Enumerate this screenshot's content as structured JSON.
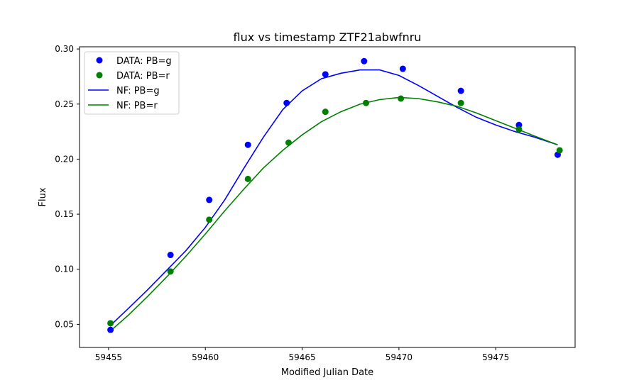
{
  "chart_data": {
    "type": "scatter",
    "title": "flux vs timestamp ZTF21abwfnru",
    "xlabel": "Modified Julian Date",
    "ylabel": "Flux",
    "xlim": [
      59453.5,
      59479.1
    ],
    "ylim": [
      0.029,
      0.302
    ],
    "xticks": [
      59455,
      59460,
      59465,
      59470,
      59475
    ],
    "yticks": [
      0.05,
      0.1,
      0.15,
      0.2,
      0.25,
      0.3
    ],
    "xtick_labels": [
      "59455",
      "59460",
      "59465",
      "59470",
      "59475"
    ],
    "ytick_labels": [
      "0.05",
      "0.10",
      "0.15",
      "0.20",
      "0.25",
      "0.30"
    ],
    "grid": false,
    "legend_position": "top-left",
    "series": [
      {
        "name": "DATA: PB=g",
        "kind": "scatter",
        "color": "#0000ff",
        "x": [
          59455.1,
          59458.2,
          59460.2,
          59462.2,
          59464.2,
          59466.2,
          59468.2,
          59470.2,
          59473.2,
          59476.2,
          59478.2
        ],
        "y": [
          0.045,
          0.113,
          0.163,
          0.213,
          0.251,
          0.277,
          0.289,
          0.282,
          0.262,
          0.231,
          0.204
        ]
      },
      {
        "name": "DATA: PB=r",
        "kind": "scatter",
        "color": "#008000",
        "x": [
          59455.1,
          59458.2,
          59460.2,
          59462.2,
          59464.3,
          59466.2,
          59468.3,
          59470.1,
          59473.2,
          59476.2,
          59478.3
        ],
        "y": [
          0.051,
          0.098,
          0.145,
          0.182,
          0.215,
          0.243,
          0.251,
          0.255,
          0.251,
          0.227,
          0.208
        ]
      },
      {
        "name": "NF: PB=g",
        "kind": "line",
        "color": "#0000ff",
        "x": [
          59455.1,
          59456,
          59457,
          59458,
          59459,
          59460,
          59461,
          59462,
          59463,
          59464,
          59465,
          59466,
          59467,
          59468,
          59469,
          59470,
          59471,
          59472,
          59473,
          59474,
          59475,
          59476,
          59477,
          59478.2
        ],
        "y": [
          0.049,
          0.064,
          0.081,
          0.099,
          0.117,
          0.138,
          0.163,
          0.192,
          0.22,
          0.245,
          0.262,
          0.273,
          0.278,
          0.281,
          0.281,
          0.276,
          0.267,
          0.257,
          0.247,
          0.238,
          0.231,
          0.225,
          0.22,
          0.213
        ]
      },
      {
        "name": "NF: PB=r",
        "kind": "line",
        "color": "#008000",
        "x": [
          59455.1,
          59456,
          59457,
          59458,
          59459,
          59460,
          59461,
          59462,
          59463,
          59464,
          59465,
          59466,
          59467,
          59468,
          59469,
          59470,
          59471,
          59472,
          59473,
          59474,
          59475,
          59476,
          59477,
          59478.2
        ],
        "y": [
          0.044,
          0.058,
          0.075,
          0.093,
          0.112,
          0.132,
          0.153,
          0.173,
          0.192,
          0.208,
          0.222,
          0.234,
          0.243,
          0.25,
          0.254,
          0.256,
          0.255,
          0.252,
          0.248,
          0.242,
          0.235,
          0.228,
          0.221,
          0.213
        ]
      }
    ]
  }
}
